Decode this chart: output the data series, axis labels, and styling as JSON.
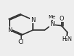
{
  "bg_color": "#eeeeee",
  "bond_color": "#333333",
  "text_color": "#111111",
  "line_width": 1.3,
  "font_size": 6.0,
  "xlim": [
    0.0,
    1.0
  ],
  "ylim": [
    0.0,
    1.0
  ]
}
